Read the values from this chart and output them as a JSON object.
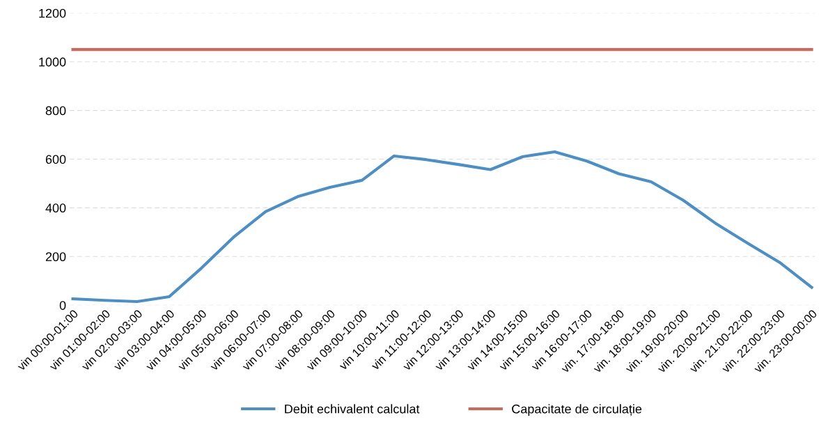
{
  "chart_data": {
    "type": "line",
    "categories": [
      "vin 00:00-01:00",
      "vin 01:00-02:00",
      "vin 02:00-03:00",
      "vin 03:00-04:00",
      "vin 04:00-05:00",
      "vin 05:00-06:00",
      "vin 06:00-07:00",
      "vin 07:00-08:00",
      "vin 08:00-09:00",
      "vin 09:00-10:00",
      "vin 10:00-11:00",
      "vin 11:00-12:00",
      "vin 12:00-13:00",
      "vin 13:00-14:00",
      "vin 14:00-15:00",
      "vin 15:00-16:00",
      "vin 16:00-17:00",
      "vin. 17:00-18:00",
      "vin. 18:00-19:00",
      "vin. 19:00-20:00",
      "vin. 20:00-21:00",
      "vin. 21:00-22:00",
      "vin. 22:00-23:00",
      "vin. 23:00-00:00"
    ],
    "series": [
      {
        "name": "Debit echivalent calculat",
        "color": "#4a8fc8",
        "values": [
          26,
          20,
          15,
          35,
          152,
          279,
          384,
          446,
          484,
          513,
          613,
          598,
          578,
          557,
          610,
          630,
          592,
          540,
          507,
          431,
          337,
          255,
          176,
          73
        ]
      },
      {
        "name": "Capacitate de circulație",
        "color": "#d0685a",
        "values": [
          1050,
          1050,
          1050,
          1050,
          1050,
          1050,
          1050,
          1050,
          1050,
          1050,
          1050,
          1050,
          1050,
          1050,
          1050,
          1050,
          1050,
          1050,
          1050,
          1050,
          1050,
          1050,
          1050,
          1050
        ]
      }
    ],
    "ylim": [
      0,
      1200
    ],
    "yticks": [
      0,
      200,
      400,
      600,
      800,
      1000,
      1200
    ],
    "grid": "y",
    "legend": "bottom",
    "marker": "none",
    "line_style": "solid"
  }
}
